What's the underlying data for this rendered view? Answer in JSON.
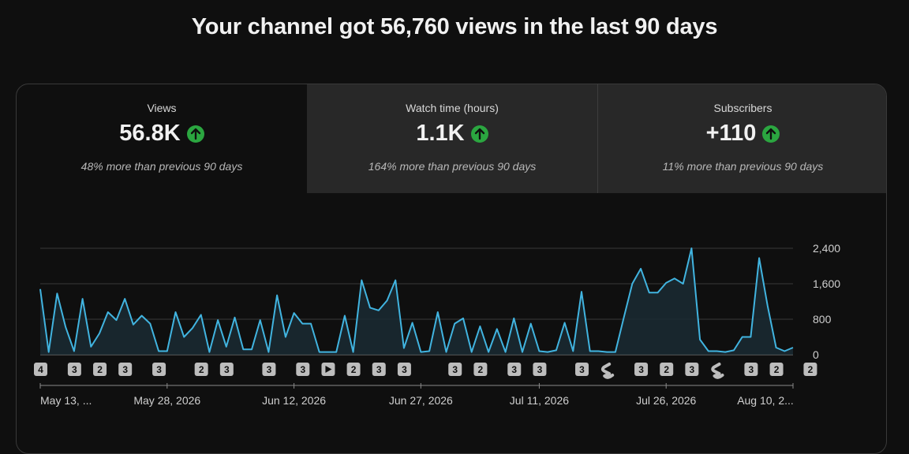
{
  "headline": "Your channel got 56,760 views in the last 90 days",
  "tabs": [
    {
      "label": "Views",
      "value": "56.8K",
      "trend_icon": "arrow-up-icon",
      "comparison": "48% more than previous 90 days",
      "selected": true
    },
    {
      "label": "Watch time (hours)",
      "value": "1.1K",
      "trend_icon": "arrow-up-icon",
      "comparison": "164% more than previous 90 days",
      "selected": false
    },
    {
      "label": "Subscribers",
      "value": "+110",
      "trend_icon": "arrow-up-icon",
      "comparison": "11% more than previous 90 days",
      "selected": false
    }
  ],
  "colors": {
    "accent": "#41b4e0",
    "positive": "#2ba640",
    "tab_inactive_bg": "#282828"
  },
  "chart_data": {
    "type": "area",
    "ylim": [
      0,
      2400
    ],
    "y_ticks": [
      "2,400",
      "1,600",
      "800",
      "0"
    ],
    "y_tick_values": [
      2400,
      1600,
      800,
      0
    ],
    "x_tick_labels": [
      "May 13, ...",
      "May 28, 2026",
      "Jun 12, 2026",
      "Jun 27, 2026",
      "Jul 11, 2026",
      "Jul 26, 2026",
      "Aug 10, 2..."
    ],
    "x_tick_dates": [
      "2026-05-13",
      "2026-05-28",
      "2026-06-12",
      "2026-06-27",
      "2026-07-11",
      "2026-07-26",
      "2026-08-10"
    ],
    "x_start": "2026-05-13",
    "x_end": "2026-08-10",
    "values": [
      1480,
      60,
      1380,
      620,
      80,
      1260,
      180,
      480,
      960,
      780,
      1260,
      680,
      880,
      700,
      80,
      80,
      960,
      400,
      600,
      900,
      60,
      780,
      180,
      840,
      120,
      120,
      780,
      60,
      1340,
      400,
      940,
      700,
      700,
      60,
      60,
      60,
      880,
      60,
      1680,
      1060,
      1000,
      1220,
      1680,
      150,
      720,
      60,
      80,
      960,
      60,
      700,
      820,
      60,
      640,
      60,
      580,
      60,
      820,
      60,
      700,
      80,
      60,
      100,
      720,
      80,
      1420,
      80,
      80,
      60,
      60,
      840,
      1600,
      1940,
      1400,
      1400,
      1620,
      1720,
      1600,
      2400,
      340,
      80,
      80,
      60,
      100,
      400,
      400,
      2180,
      1100,
      160,
      80,
      160
    ],
    "upload_markers": [
      {
        "date": "2026-05-13",
        "type": "count",
        "label": "4"
      },
      {
        "date": "2026-05-17",
        "type": "count",
        "label": "3"
      },
      {
        "date": "2026-05-20",
        "type": "count",
        "label": "2"
      },
      {
        "date": "2026-05-23",
        "type": "count",
        "label": "3"
      },
      {
        "date": "2026-05-27",
        "type": "count",
        "label": "3"
      },
      {
        "date": "2026-06-01",
        "type": "count",
        "label": "2"
      },
      {
        "date": "2026-06-04",
        "type": "count",
        "label": "3"
      },
      {
        "date": "2026-06-09",
        "type": "count",
        "label": "3"
      },
      {
        "date": "2026-06-13",
        "type": "count",
        "label": "3"
      },
      {
        "date": "2026-06-16",
        "type": "video",
        "label": ""
      },
      {
        "date": "2026-06-19",
        "type": "count",
        "label": "2"
      },
      {
        "date": "2026-06-22",
        "type": "count",
        "label": "3"
      },
      {
        "date": "2026-06-25",
        "type": "count",
        "label": "3"
      },
      {
        "date": "2026-07-01",
        "type": "count",
        "label": "3"
      },
      {
        "date": "2026-07-04",
        "type": "count",
        "label": "2"
      },
      {
        "date": "2026-07-08",
        "type": "count",
        "label": "3"
      },
      {
        "date": "2026-07-11",
        "type": "count",
        "label": "3"
      },
      {
        "date": "2026-07-16",
        "type": "count",
        "label": "3"
      },
      {
        "date": "2026-07-19",
        "type": "short",
        "label": ""
      },
      {
        "date": "2026-07-23",
        "type": "count",
        "label": "3"
      },
      {
        "date": "2026-07-26",
        "type": "count",
        "label": "2"
      },
      {
        "date": "2026-07-29",
        "type": "count",
        "label": "3"
      },
      {
        "date": "2026-08-01",
        "type": "short",
        "label": ""
      },
      {
        "date": "2026-08-05",
        "type": "count",
        "label": "3"
      },
      {
        "date": "2026-08-08",
        "type": "count",
        "label": "2"
      },
      {
        "date": "2026-08-12",
        "type": "count",
        "label": "2"
      }
    ]
  }
}
